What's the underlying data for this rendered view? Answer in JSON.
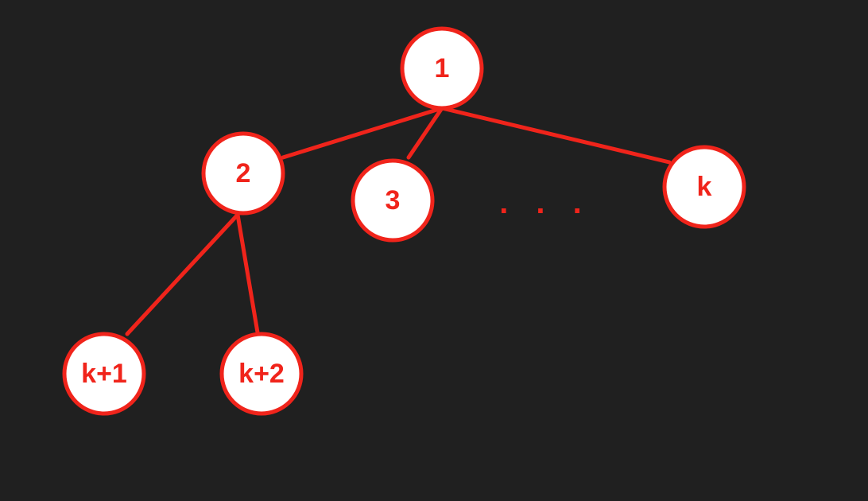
{
  "colors": {
    "background": "#202020",
    "accent": "#f0241b",
    "node_fill": "#ffffff"
  },
  "tree": {
    "nodes": [
      {
        "id": "n1",
        "label": "1"
      },
      {
        "id": "n2",
        "label": "2"
      },
      {
        "id": "n3",
        "label": "3"
      },
      {
        "id": "nk",
        "label": "k"
      },
      {
        "id": "nk1",
        "label": "k+1"
      },
      {
        "id": "nk2",
        "label": "k+2"
      }
    ],
    "edges": [
      {
        "from": "n1",
        "to": "n2"
      },
      {
        "from": "n1",
        "to": "n3"
      },
      {
        "from": "n1",
        "to": "nk"
      },
      {
        "from": "n2",
        "to": "nk1"
      },
      {
        "from": "n2",
        "to": "nk2"
      }
    ],
    "ellipsis": ". . ."
  }
}
